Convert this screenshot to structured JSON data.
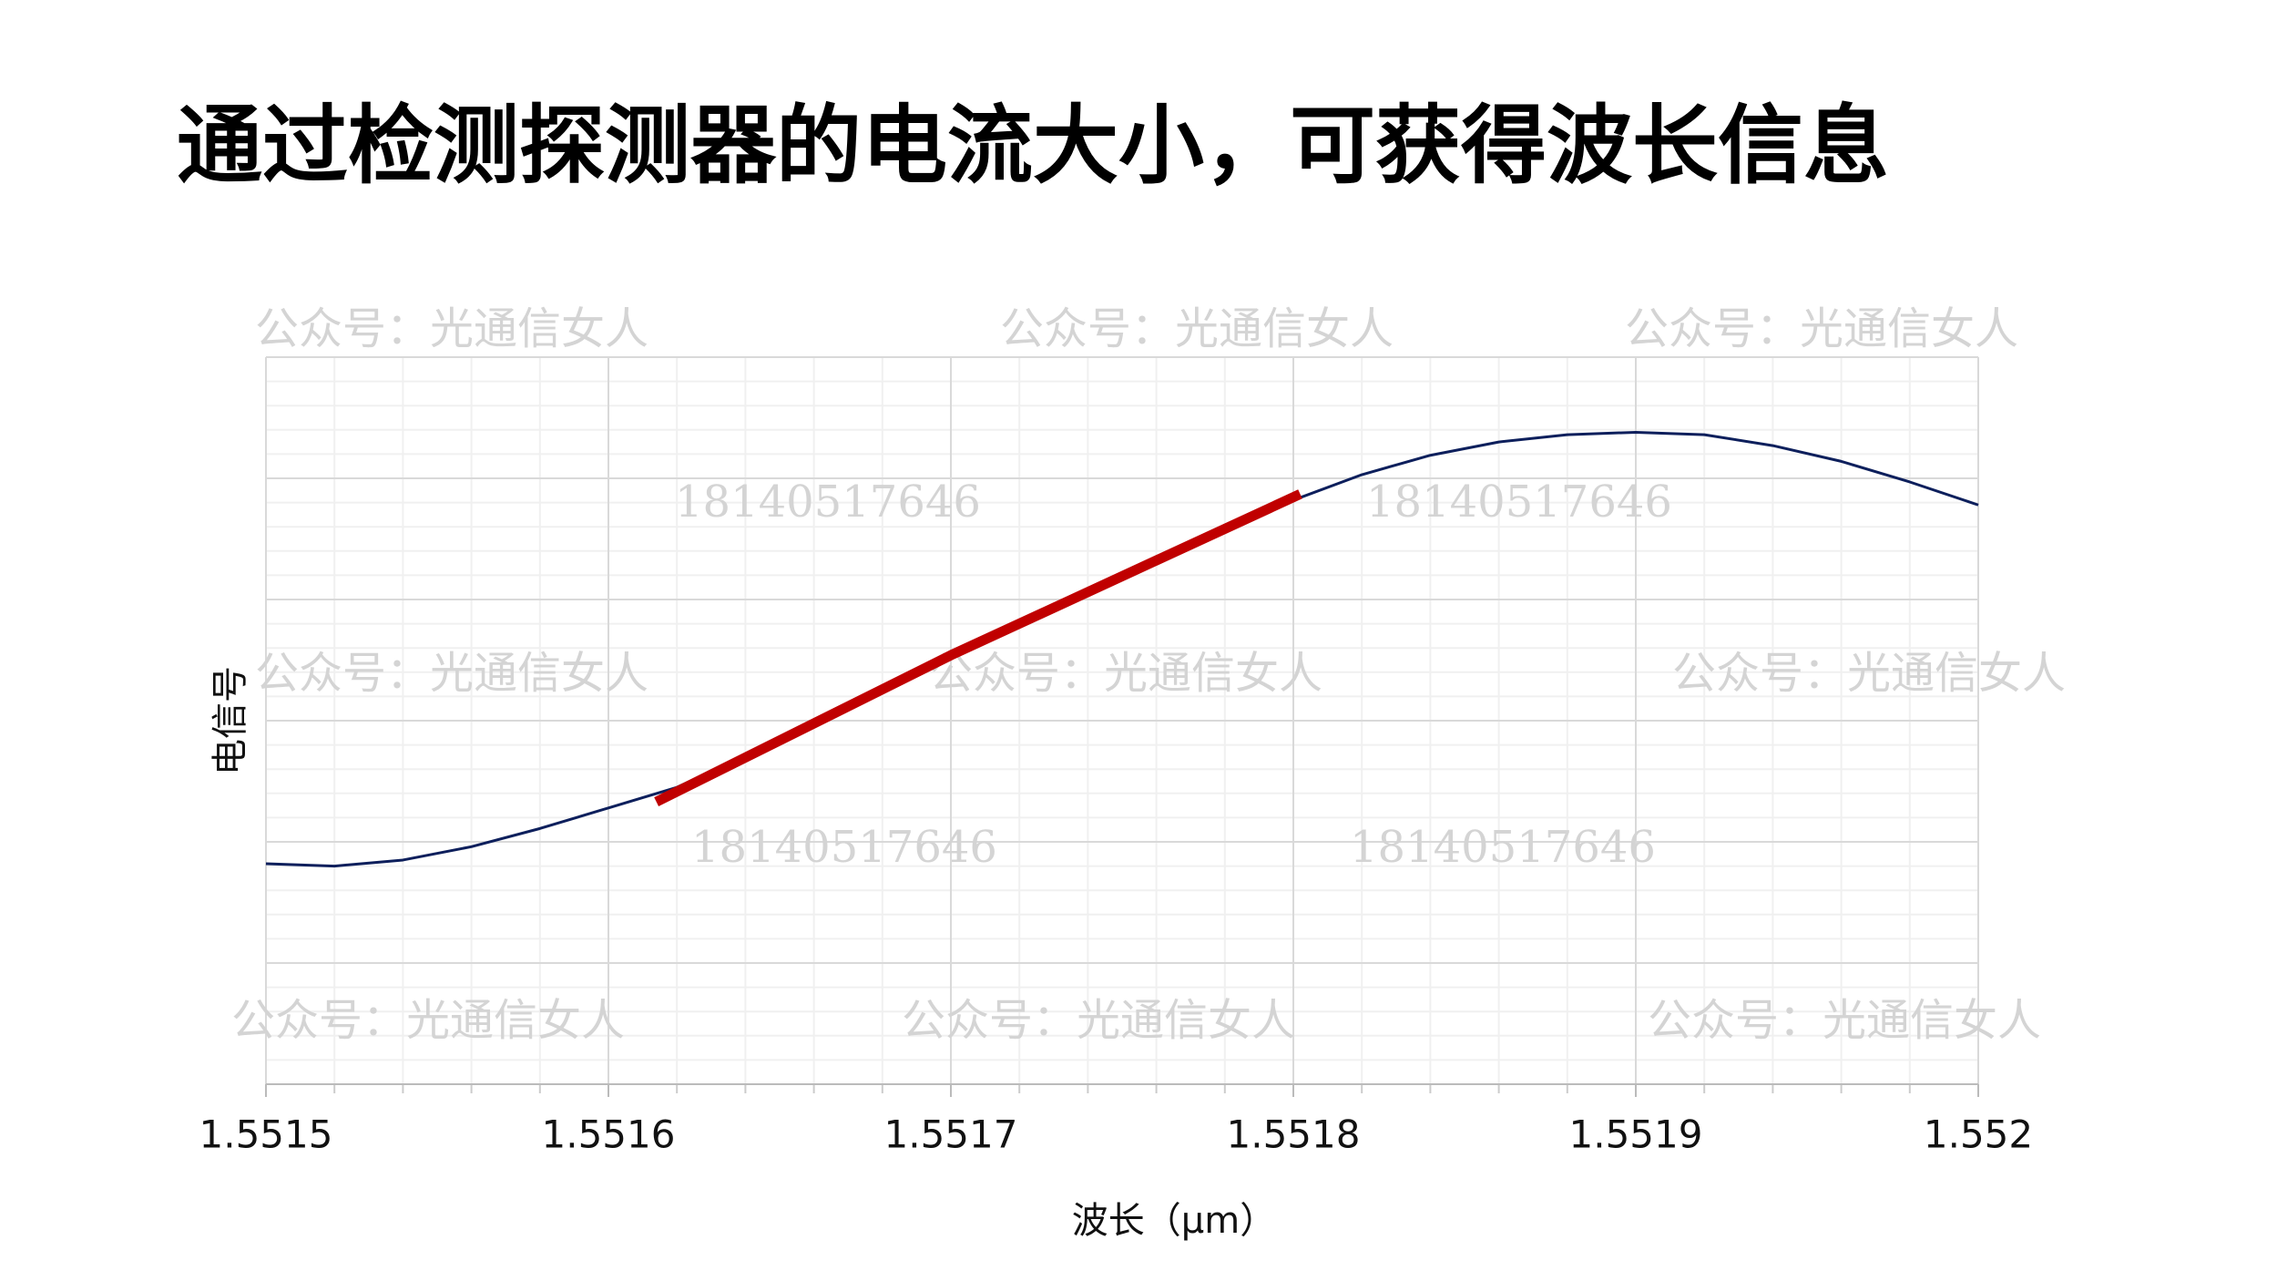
{
  "chart_data": {
    "type": "line",
    "title": "通过检测探测器的电流大小，可获得波长信息",
    "x_label": "波长（μm）",
    "y_label": "电信号",
    "xlim": [
      1.5515,
      1.552
    ],
    "xticks": [
      1.5515,
      1.5516,
      1.5517,
      1.5518,
      1.5519,
      1.552
    ],
    "ylim": [
      0,
      6
    ],
    "yticks": [
      0,
      1,
      2,
      3,
      4,
      5,
      6
    ],
    "show_ytick_labels": false,
    "grid": true,
    "minor_divisions": 5,
    "series": [
      {
        "color": "#0d1f5c",
        "line_width": 3,
        "x": [
          1.5515,
          1.55152,
          1.55154,
          1.55156,
          1.55158,
          1.5516,
          1.55162,
          1.55164,
          1.55166,
          1.55168,
          1.5517,
          1.55172,
          1.55174,
          1.55176,
          1.55178,
          1.5518,
          1.55182,
          1.55184,
          1.55186,
          1.55188,
          1.5519,
          1.55192,
          1.55194,
          1.55196,
          1.55198,
          1.552
        ],
        "values": [
          1.82,
          1.8,
          1.85,
          1.96,
          2.11,
          2.28,
          2.45,
          2.71,
          2.99,
          3.26,
          3.54,
          3.8,
          4.08,
          4.35,
          4.61,
          4.82,
          5.03,
          5.19,
          5.3,
          5.36,
          5.38,
          5.36,
          5.27,
          5.14,
          4.97,
          4.78
        ]
      },
      {
        "color": "#c00000",
        "line_width": 11,
        "x": [
          1.551614,
          1.5517,
          1.551802
        ],
        "values": [
          2.33,
          3.54,
          4.87
        ]
      }
    ],
    "watermarks": [
      "公众号：光通信女人",
      "公众号：光通信女人",
      "公众号：光通信女人",
      "18140517646",
      "18140517646",
      "公众号：光通信女人",
      "公众号：光通信女人",
      "公众号：光通信女人",
      "18140517646",
      "18140517646",
      "公众号：光通信女人",
      "公众号：光通信女人",
      "公众号：光通信女人"
    ]
  }
}
